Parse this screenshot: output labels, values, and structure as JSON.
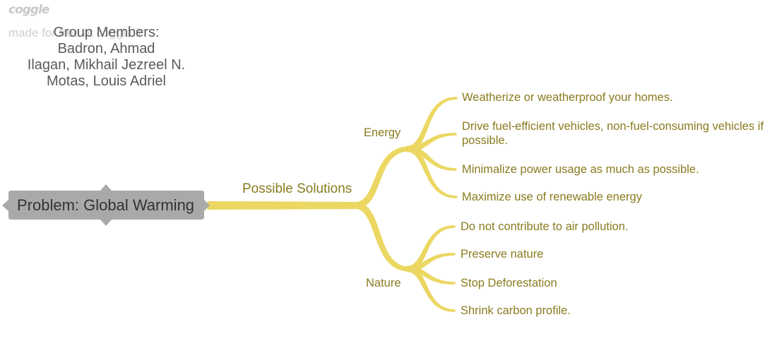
{
  "app": {
    "logo_text": "coggle",
    "watermark": "made for free at coggle.it"
  },
  "colors": {
    "background": "#ffffff",
    "branch": "#ebd762",
    "branch_text": "#8a7b1f",
    "root_fill": "#a9a9a9",
    "root_text": "#333333",
    "note_text": "#5a5a5a",
    "logo": "#c8c8c8",
    "watermark": "#cfcfcf"
  },
  "note": {
    "lines": [
      "Group Members:",
      "Badron, Ahmad",
      "Ilagan, Mikhail Jezreel N.",
      "Motas, Louis Adriel"
    ]
  },
  "root": {
    "label": "Problem: Global Warming",
    "handles": {
      "left": "arrow-left-icon",
      "up": "arrow-up-icon",
      "down": "arrow-down-icon",
      "right": "arrow-right-icon"
    },
    "children": [
      {
        "label": "Possible Solutions",
        "children": [
          {
            "label": "Energy",
            "children": [
              {
                "label": "Weatherize or weatherproof your homes."
              },
              {
                "label": "Drive fuel-efficient vehicles, non-fuel-consuming vehicles if possible."
              },
              {
                "label": "Minimalize power usage as much as possible."
              },
              {
                "label": "Maximize use of renewable energy"
              }
            ]
          },
          {
            "label": "Nature",
            "children": [
              {
                "label": "Do not contribute to air pollution."
              },
              {
                "label": "Preserve nature"
              },
              {
                "label": "Stop Deforestation"
              },
              {
                "label": "Shrink carbon profile."
              }
            ]
          }
        ]
      }
    ]
  }
}
